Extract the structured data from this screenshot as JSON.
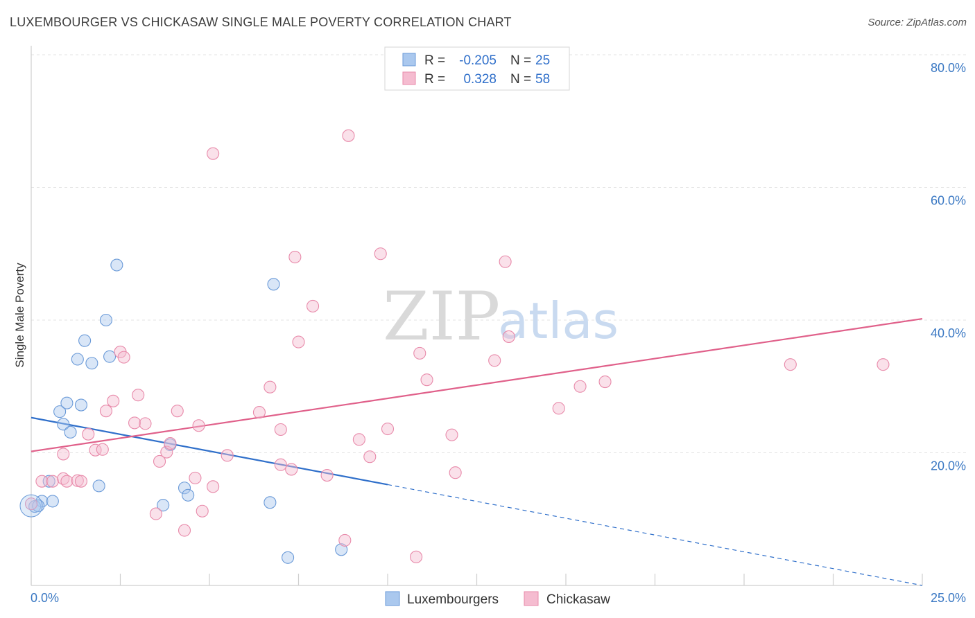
{
  "header": {
    "title": "LUXEMBOURGER VS CHICKASAW SINGLE MALE POVERTY CORRELATION CHART",
    "source": "Source: ZipAtlas.com"
  },
  "watermark": {
    "zip": "ZIP",
    "atlas": "atlas"
  },
  "chart_data": {
    "type": "scatter",
    "ylabel": "Single Male Poverty",
    "xlim": [
      0,
      25
    ],
    "ylim": [
      0,
      80
    ],
    "x_tick_labels": [
      "0.0%",
      "25.0%"
    ],
    "y_ticks": [
      20,
      40,
      60,
      80
    ],
    "y_tick_labels": [
      "20.0%",
      "40.0%",
      "60.0%",
      "80.0%"
    ],
    "grid": true,
    "legend_position": "top-center",
    "stats": [
      {
        "r_label": "R =",
        "r_value": "-0.205",
        "n_label": "N =",
        "n_value": "25"
      },
      {
        "r_label": "R =",
        "r_value": "0.328",
        "n_label": "N =",
        "n_value": "58"
      }
    ],
    "series": [
      {
        "name": "Luxembourgers",
        "color": "#aac8ee",
        "stroke": "#6a9ad8",
        "line_color": "#2f6fca",
        "trend": {
          "x0": 0,
          "y0": 25.3,
          "x1": 10.0,
          "y1": 15.2,
          "dash_to_x": 25,
          "dash_to_y": 0
        },
        "points": [
          [
            0.5,
            15.7
          ],
          [
            0.8,
            26.2
          ],
          [
            1.0,
            27.5
          ],
          [
            0.9,
            24.3
          ],
          [
            1.1,
            23.1
          ],
          [
            1.3,
            34.1
          ],
          [
            1.4,
            27.2
          ],
          [
            1.5,
            36.9
          ],
          [
            1.7,
            33.5
          ],
          [
            1.9,
            15.0
          ],
          [
            2.1,
            40.0
          ],
          [
            2.2,
            34.5
          ],
          [
            2.4,
            48.3
          ],
          [
            0.3,
            12.7
          ],
          [
            0.6,
            12.7
          ],
          [
            0.1,
            11.9
          ],
          [
            0.2,
            12.0
          ],
          [
            3.7,
            12.1
          ],
          [
            3.9,
            21.2
          ],
          [
            4.3,
            14.7
          ],
          [
            4.4,
            13.6
          ],
          [
            6.8,
            45.4
          ],
          [
            6.7,
            12.5
          ],
          [
            7.2,
            4.2
          ],
          [
            8.7,
            5.4
          ]
        ]
      },
      {
        "name": "Chickasaw",
        "color": "#f5bcd0",
        "stroke": "#e88aaa",
        "line_color": "#e0608a",
        "trend": {
          "x0": 0,
          "y0": 20.2,
          "x1": 25,
          "y1": 40.2
        },
        "points": [
          [
            0.0,
            12.3
          ],
          [
            0.3,
            15.7
          ],
          [
            0.6,
            15.7
          ],
          [
            0.9,
            16.1
          ],
          [
            0.9,
            19.8
          ],
          [
            1.0,
            15.7
          ],
          [
            1.3,
            15.8
          ],
          [
            1.4,
            15.7
          ],
          [
            1.6,
            22.8
          ],
          [
            1.8,
            20.4
          ],
          [
            2.0,
            20.5
          ],
          [
            2.1,
            26.3
          ],
          [
            2.3,
            27.8
          ],
          [
            2.5,
            35.2
          ],
          [
            2.6,
            34.4
          ],
          [
            2.9,
            24.5
          ],
          [
            3.0,
            28.7
          ],
          [
            3.2,
            24.4
          ],
          [
            3.5,
            10.8
          ],
          [
            3.6,
            18.7
          ],
          [
            3.8,
            20.1
          ],
          [
            3.9,
            21.4
          ],
          [
            4.1,
            26.3
          ],
          [
            4.3,
            8.3
          ],
          [
            4.6,
            16.2
          ],
          [
            4.7,
            24.1
          ],
          [
            4.8,
            11.2
          ],
          [
            5.1,
            14.9
          ],
          [
            5.1,
            65.1
          ],
          [
            5.5,
            19.6
          ],
          [
            6.4,
            26.1
          ],
          [
            6.7,
            29.9
          ],
          [
            7.0,
            23.5
          ],
          [
            7.0,
            18.2
          ],
          [
            7.3,
            17.5
          ],
          [
            7.4,
            49.5
          ],
          [
            7.5,
            36.7
          ],
          [
            7.9,
            42.1
          ],
          [
            8.3,
            16.6
          ],
          [
            8.8,
            6.8
          ],
          [
            8.9,
            67.8
          ],
          [
            9.2,
            22.0
          ],
          [
            9.5,
            19.4
          ],
          [
            9.8,
            50.0
          ],
          [
            10.0,
            23.6
          ],
          [
            10.8,
            4.3
          ],
          [
            10.9,
            35.0
          ],
          [
            11.1,
            31.0
          ],
          [
            11.8,
            22.7
          ],
          [
            11.9,
            17.0
          ],
          [
            13.0,
            33.9
          ],
          [
            13.3,
            48.8
          ],
          [
            13.4,
            37.5
          ],
          [
            14.8,
            26.7
          ],
          [
            15.4,
            30.0
          ],
          [
            16.1,
            30.7
          ],
          [
            21.3,
            33.3
          ],
          [
            23.9,
            33.3
          ]
        ]
      }
    ]
  }
}
